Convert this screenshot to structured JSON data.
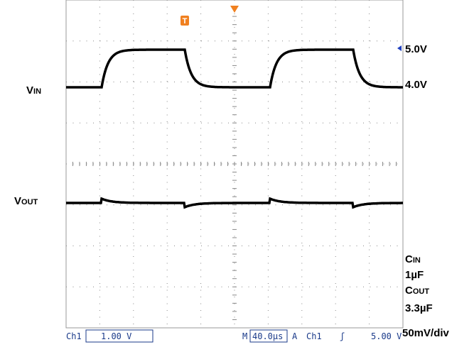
{
  "labels": {
    "vin": {
      "main": "V",
      "sub": "IN"
    },
    "vout": {
      "main": "V",
      "sub": "OUT"
    },
    "v5": "5.0V",
    "v4": "4.0V",
    "cin": {
      "main": "C",
      "sub": "IN"
    },
    "cin_val": "1µF",
    "cout": {
      "main": "C",
      "sub": "OUT"
    },
    "cout_val": "3.3µF",
    "scale": "50mV/div"
  },
  "status_bar": {
    "channel": "Ch1",
    "volts": "1.00 V",
    "time_prefix": "M",
    "time": "40.0µs",
    "trigger_mode": "A",
    "trigger_ch": "Ch1",
    "trigger_slope": "ʃ",
    "trigger_level": "5.00 V"
  },
  "trigger_marker": "T"
}
